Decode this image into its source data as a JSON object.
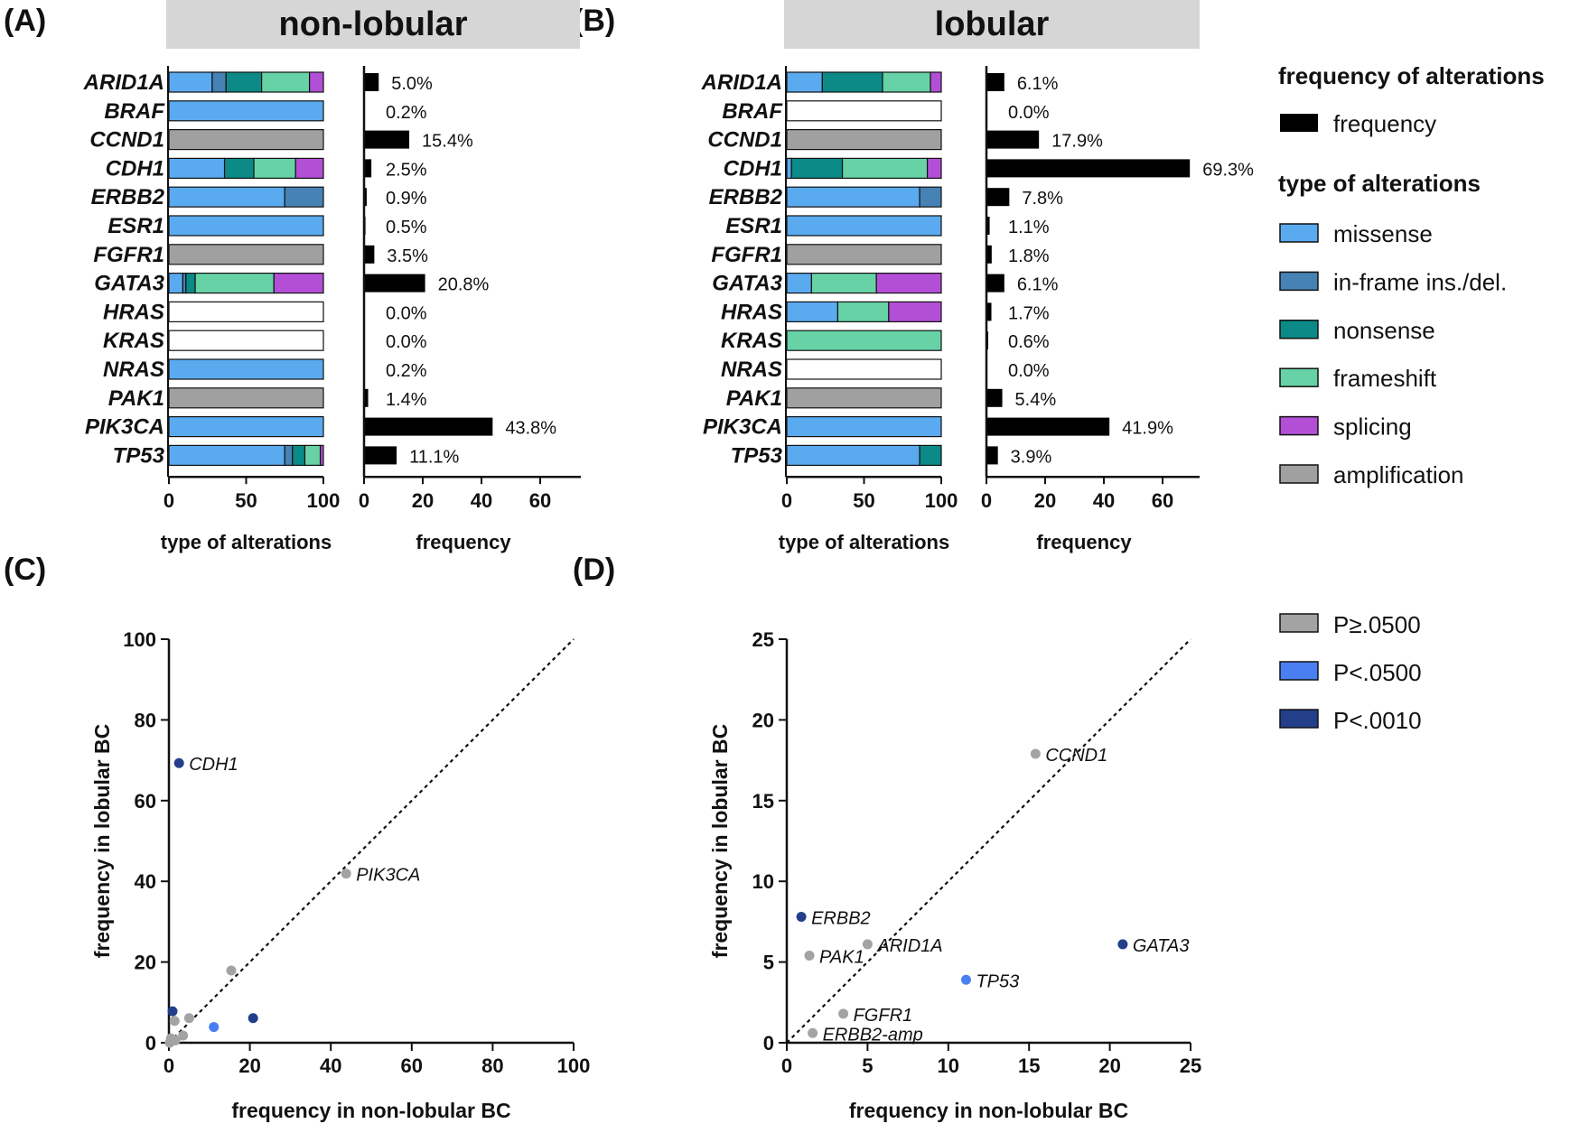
{
  "panel_labels": {
    "a": "(A)",
    "b": "(B)",
    "c": "(C)",
    "d": "(D)"
  },
  "headers": {
    "a": "non-lobular",
    "b": "lobular"
  },
  "colors": {
    "missense": "#5aaaf0",
    "inframe": "#4682b4",
    "nonsense": "#0b8a87",
    "frameshift": "#66d2a6",
    "splicing": "#b34fd6",
    "amplification": "#a0a0a0",
    "none": "#ffffff",
    "frequency": "#000000",
    "p_ns": "#a3a3a3",
    "p_05": "#4a7ff2",
    "p_001": "#233e8b"
  },
  "legend": {
    "freq_title": "frequency of alterations",
    "freq_label": "frequency",
    "type_title": "type of alterations",
    "types": [
      {
        "key": "missense",
        "label": "missense"
      },
      {
        "key": "inframe",
        "label": "in-frame ins./del."
      },
      {
        "key": "nonsense",
        "label": "nonsense"
      },
      {
        "key": "frameshift",
        "label": "frameshift"
      },
      {
        "key": "splicing",
        "label": "splicing"
      },
      {
        "key": "amplification",
        "label": "amplification"
      }
    ],
    "pvals": [
      {
        "key": "p_ns",
        "label": "P≥.0500"
      },
      {
        "key": "p_05",
        "label": "P<.0500"
      },
      {
        "key": "p_001",
        "label": "P<.0010"
      }
    ]
  },
  "chart_data": [
    {
      "id": "A",
      "type": "bar",
      "orientation": "horizontal",
      "stacked": true,
      "title": "non-lobular",
      "genes": [
        "ARID1A",
        "BRAF",
        "CCND1",
        "CDH1",
        "ERBB2",
        "ESR1",
        "FGFR1",
        "GATA3",
        "HRAS",
        "KRAS",
        "NRAS",
        "PAK1",
        "PIK3CA",
        "TP53"
      ],
      "type_xlabel": "type of alterations",
      "type_xlim": [
        0,
        100
      ],
      "type_xticks": [
        "0",
        "50",
        "100"
      ],
      "type_composition": [
        [
          [
            "missense",
            28
          ],
          [
            "inframe",
            9
          ],
          [
            "nonsense",
            23
          ],
          [
            "frameshift",
            31
          ],
          [
            "splicing",
            9
          ]
        ],
        [
          [
            "missense",
            100
          ]
        ],
        [
          [
            "amplification",
            100
          ]
        ],
        [
          [
            "missense",
            36
          ],
          [
            "nonsense",
            19
          ],
          [
            "frameshift",
            27
          ],
          [
            "splicing",
            18
          ]
        ],
        [
          [
            "missense",
            75
          ],
          [
            "inframe",
            25
          ]
        ],
        [
          [
            "missense",
            100
          ]
        ],
        [
          [
            "amplification",
            100
          ]
        ],
        [
          [
            "missense",
            9
          ],
          [
            "inframe",
            2
          ],
          [
            "nonsense",
            6
          ],
          [
            "frameshift",
            51
          ],
          [
            "splicing",
            32
          ]
        ],
        [
          [
            "none",
            100
          ]
        ],
        [
          [
            "none",
            100
          ]
        ],
        [
          [
            "missense",
            100
          ]
        ],
        [
          [
            "amplification",
            100
          ]
        ],
        [
          [
            "missense",
            100
          ]
        ],
        [
          [
            "missense",
            75
          ],
          [
            "inframe",
            5
          ],
          [
            "nonsense",
            8
          ],
          [
            "frameshift",
            10
          ],
          [
            "splicing",
            2
          ]
        ]
      ],
      "freq_xlabel": "frequency",
      "freq_xlim": [
        0,
        75
      ],
      "freq_xticks": [
        "0",
        "20",
        "40",
        "60"
      ],
      "frequency": [
        5.0,
        0.2,
        15.4,
        2.5,
        0.9,
        0.5,
        3.5,
        20.8,
        0.0,
        0.0,
        0.2,
        1.4,
        43.8,
        11.1
      ],
      "frequency_labels": [
        "5.0%",
        "0.2%",
        "15.4%",
        "2.5%",
        "0.9%",
        "0.5%",
        "3.5%",
        "20.8%",
        "0.0%",
        "0.0%",
        "0.2%",
        "1.4%",
        "43.8%",
        "11.1%"
      ]
    },
    {
      "id": "B",
      "type": "bar",
      "orientation": "horizontal",
      "stacked": true,
      "title": "lobular",
      "genes": [
        "ARID1A",
        "BRAF",
        "CCND1",
        "CDH1",
        "ERBB2",
        "ESR1",
        "FGFR1",
        "GATA3",
        "HRAS",
        "KRAS",
        "NRAS",
        "PAK1",
        "PIK3CA",
        "TP53"
      ],
      "type_xlabel": "type of alterations",
      "type_xlim": [
        0,
        100
      ],
      "type_xticks": [
        "0",
        "50",
        "100"
      ],
      "type_composition": [
        [
          [
            "missense",
            23
          ],
          [
            "nonsense",
            39
          ],
          [
            "frameshift",
            31
          ],
          [
            "splicing",
            7
          ]
        ],
        [
          [
            "none",
            100
          ]
        ],
        [
          [
            "amplification",
            100
          ]
        ],
        [
          [
            "missense",
            3
          ],
          [
            "nonsense",
            33
          ],
          [
            "frameshift",
            55
          ],
          [
            "splicing",
            9
          ]
        ],
        [
          [
            "missense",
            86
          ],
          [
            "inframe",
            14
          ]
        ],
        [
          [
            "missense",
            100
          ]
        ],
        [
          [
            "amplification",
            100
          ]
        ],
        [
          [
            "missense",
            16
          ],
          [
            "frameshift",
            42
          ],
          [
            "splicing",
            42
          ]
        ],
        [
          [
            "missense",
            33
          ],
          [
            "frameshift",
            33
          ],
          [
            "splicing",
            34
          ]
        ],
        [
          [
            "frameshift",
            100
          ]
        ],
        [
          [
            "none",
            100
          ]
        ],
        [
          [
            "amplification",
            100
          ]
        ],
        [
          [
            "missense",
            100
          ]
        ],
        [
          [
            "missense",
            86
          ],
          [
            "nonsense",
            14
          ]
        ]
      ],
      "freq_xlabel": "frequency",
      "freq_xlim": [
        0,
        75
      ],
      "freq_xticks": [
        "0",
        "20",
        "40",
        "60"
      ],
      "frequency": [
        6.1,
        0.0,
        17.9,
        69.3,
        7.8,
        1.1,
        1.8,
        6.1,
        1.7,
        0.6,
        0.0,
        5.4,
        41.9,
        3.9
      ],
      "frequency_labels": [
        "6.1%",
        "0.0%",
        "17.9%",
        "69.3%",
        "7.8%",
        "1.1%",
        "1.8%",
        "6.1%",
        "1.7%",
        "0.6%",
        "0.0%",
        "5.4%",
        "41.9%",
        "3.9%"
      ]
    },
    {
      "id": "C",
      "type": "scatter",
      "xlabel": "frequency in non-lobular BC",
      "ylabel": "frequency in lobular BC",
      "xlim": [
        0,
        100
      ],
      "ylim": [
        0,
        100
      ],
      "xticks": [
        "0",
        "20",
        "40",
        "60",
        "80",
        "100"
      ],
      "yticks": [
        "0",
        "20",
        "40",
        "60",
        "80",
        "100"
      ],
      "diagonal": true,
      "points": [
        {
          "x": 2.5,
          "y": 69.3,
          "p": "p_001",
          "label": "CDH1"
        },
        {
          "x": 43.8,
          "y": 41.9,
          "p": "p_ns",
          "label": "PIK3CA"
        },
        {
          "x": 15.4,
          "y": 17.9,
          "p": "p_ns",
          "label": ""
        },
        {
          "x": 0.9,
          "y": 7.8,
          "p": "p_001",
          "label": ""
        },
        {
          "x": 20.8,
          "y": 6.1,
          "p": "p_001",
          "label": ""
        },
        {
          "x": 5.0,
          "y": 6.1,
          "p": "p_ns",
          "label": ""
        },
        {
          "x": 1.4,
          "y": 5.4,
          "p": "p_ns",
          "label": ""
        },
        {
          "x": 11.1,
          "y": 3.9,
          "p": "p_05",
          "label": ""
        },
        {
          "x": 3.5,
          "y": 1.8,
          "p": "p_ns",
          "label": ""
        },
        {
          "x": 1.6,
          "y": 0.6,
          "p": "p_ns",
          "label": ""
        },
        {
          "x": 0.5,
          "y": 1.1,
          "p": "p_ns",
          "label": ""
        },
        {
          "x": 0.2,
          "y": 0.0,
          "p": "p_ns",
          "label": ""
        }
      ]
    },
    {
      "id": "D",
      "type": "scatter",
      "xlabel": "frequency in non-lobular BC",
      "ylabel": "frequency in lobular BC",
      "xlim": [
        0,
        25
      ],
      "ylim": [
        0,
        25
      ],
      "xticks": [
        "0",
        "5",
        "10",
        "15",
        "20",
        "25"
      ],
      "yticks": [
        "0",
        "5",
        "10",
        "15",
        "20",
        "25"
      ],
      "diagonal": true,
      "points": [
        {
          "x": 15.4,
          "y": 17.9,
          "p": "p_ns",
          "label": "CCND1"
        },
        {
          "x": 0.9,
          "y": 7.8,
          "p": "p_001",
          "label": "ERBB2"
        },
        {
          "x": 5.0,
          "y": 6.1,
          "p": "p_ns",
          "label": "ARID1A"
        },
        {
          "x": 1.4,
          "y": 5.4,
          "p": "p_ns",
          "label": "PAK1"
        },
        {
          "x": 20.8,
          "y": 6.1,
          "p": "p_001",
          "label": "GATA3"
        },
        {
          "x": 11.1,
          "y": 3.9,
          "p": "p_05",
          "label": "TP53"
        },
        {
          "x": 3.5,
          "y": 1.8,
          "p": "p_ns",
          "label": "FGFR1"
        },
        {
          "x": 1.6,
          "y": 0.6,
          "p": "p_ns",
          "label": "ERBB2-amp"
        }
      ]
    }
  ]
}
